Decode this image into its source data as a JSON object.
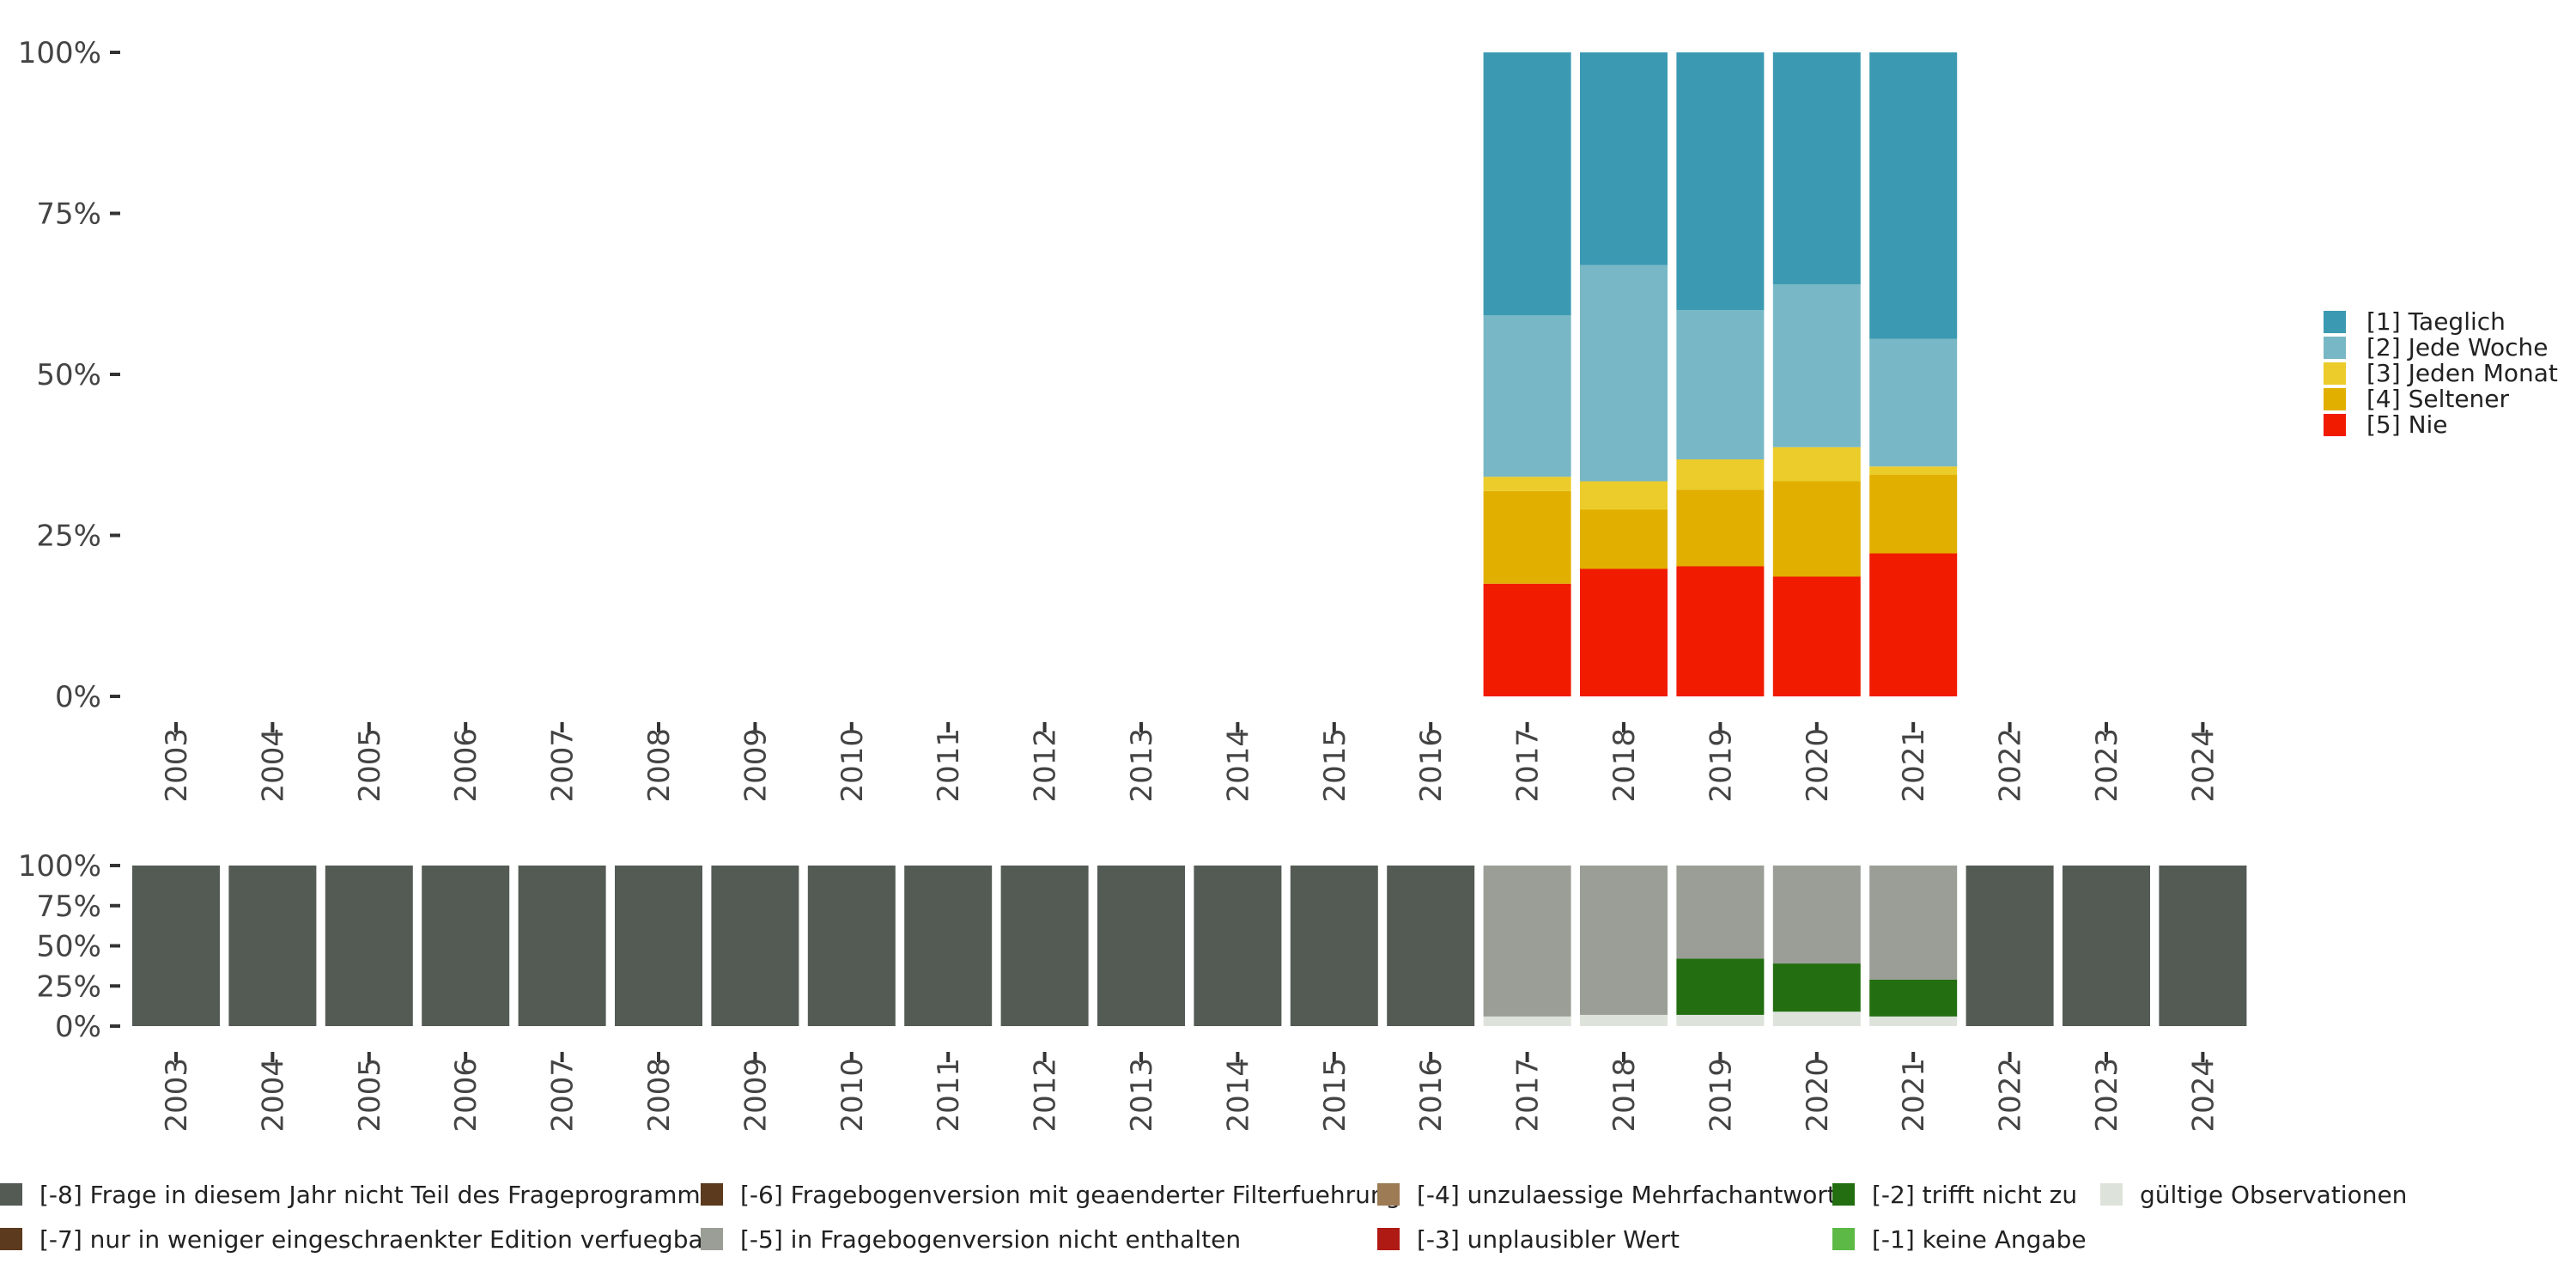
{
  "chart_data": [
    {
      "type": "bar",
      "stacked": true,
      "normalized": true,
      "title": "",
      "xlabel": "",
      "ylabel": "",
      "ylim": [
        0,
        100
      ],
      "y_tick_labels": [
        "0%",
        "25%",
        "50%",
        "75%",
        "100%"
      ],
      "categories": [
        "2003",
        "2004",
        "2005",
        "2006",
        "2007",
        "2008",
        "2009",
        "2010",
        "2011",
        "2012",
        "2013",
        "2014",
        "2015",
        "2016",
        "2017",
        "2018",
        "2019",
        "2020",
        "2021",
        "2022",
        "2023",
        "2024"
      ],
      "series": [
        {
          "name": "[5] Nie",
          "color": "#F11B00",
          "values": [
            0,
            0,
            0,
            0,
            0,
            0,
            0,
            0,
            0,
            0,
            0,
            0,
            0,
            0,
            17.5,
            19.8,
            20.2,
            18.6,
            22.2,
            0,
            0,
            0
          ]
        },
        {
          "name": "[4] Seltener",
          "color": "#E1AF00",
          "values": [
            0,
            0,
            0,
            0,
            0,
            0,
            0,
            0,
            0,
            0,
            0,
            0,
            0,
            0,
            14.4,
            9.2,
            11.9,
            14.8,
            12.2,
            0,
            0,
            0
          ]
        },
        {
          "name": "[3] Jeden Monat",
          "color": "#EBCC2A",
          "values": [
            0,
            0,
            0,
            0,
            0,
            0,
            0,
            0,
            0,
            0,
            0,
            0,
            0,
            0,
            2.2,
            4.4,
            4.7,
            5.3,
            1.3,
            0,
            0,
            0
          ]
        },
        {
          "name": "[2] Jede Woche",
          "color": "#78B7C5",
          "values": [
            0,
            0,
            0,
            0,
            0,
            0,
            0,
            0,
            0,
            0,
            0,
            0,
            0,
            0,
            25.1,
            33.6,
            23.2,
            25.3,
            19.8,
            0,
            0,
            0
          ]
        },
        {
          "name": "[1] Taeglich",
          "color": "#3B9AB2",
          "values": [
            0,
            0,
            0,
            0,
            0,
            0,
            0,
            0,
            0,
            0,
            0,
            0,
            0,
            0,
            40.8,
            33.0,
            40.0,
            36.0,
            44.5,
            0,
            0,
            0
          ]
        }
      ],
      "legend": [
        {
          "label": "[1] Taeglich",
          "color": "#3B9AB2"
        },
        {
          "label": "[2] Jede Woche",
          "color": "#78B7C5"
        },
        {
          "label": "[3] Jeden Monat",
          "color": "#EBCC2A"
        },
        {
          "label": "[4] Seltener",
          "color": "#E1AF00"
        },
        {
          "label": "[5] Nie",
          "color": "#F11B00"
        }
      ],
      "legend_position": "right"
    },
    {
      "type": "bar",
      "stacked": true,
      "normalized": true,
      "title": "",
      "xlabel": "",
      "ylabel": "",
      "ylim": [
        0,
        100
      ],
      "y_tick_labels": [
        "0%",
        "25%",
        "50%",
        "75%",
        "100%"
      ],
      "categories": [
        "2003",
        "2004",
        "2005",
        "2006",
        "2007",
        "2008",
        "2009",
        "2010",
        "2011",
        "2012",
        "2013",
        "2014",
        "2015",
        "2016",
        "2017",
        "2018",
        "2019",
        "2020",
        "2021",
        "2022",
        "2023",
        "2024"
      ],
      "series": [
        {
          "name": "gültige Observationen",
          "color": "#DDE3DA",
          "values": [
            0,
            0,
            0,
            0,
            0,
            0,
            0,
            0,
            0,
            0,
            0,
            0,
            0,
            0,
            6,
            7,
            7,
            9,
            6,
            0,
            0,
            0
          ]
        },
        {
          "name": "[-2] trifft nicht zu",
          "color": "#226E10",
          "values": [
            0,
            0,
            0,
            0,
            0,
            0,
            0,
            0,
            0,
            0,
            0,
            0,
            0,
            0,
            0,
            0,
            35,
            30,
            23,
            0,
            0,
            0
          ]
        },
        {
          "name": "[-5] in Fragebogenversion nicht enthalten",
          "color": "#9A9E96",
          "values": [
            0,
            0,
            0,
            0,
            0,
            0,
            0,
            0,
            0,
            0,
            0,
            0,
            0,
            0,
            94,
            93,
            58,
            61,
            71,
            0,
            0,
            0
          ]
        },
        {
          "name": "[-8] Frage in diesem Jahr nicht Teil des Frageprogramms",
          "color": "#535B54",
          "values": [
            100,
            100,
            100,
            100,
            100,
            100,
            100,
            100,
            100,
            100,
            100,
            100,
            100,
            100,
            0,
            0,
            0,
            0,
            0,
            100,
            100,
            100
          ]
        }
      ],
      "legend": [
        {
          "label": "[-8] Frage in diesem Jahr nicht Teil des Frageprogramms",
          "color": "#535B54"
        },
        {
          "label": "[-7] nur in weniger eingeschraenkter Edition verfuegbar",
          "color": "#5C3A1E"
        },
        {
          "label": "[-6] Fragebogenversion mit geaenderter Filterfuehrung",
          "color": "#5C3A1E"
        },
        {
          "label": "[-5] in Fragebogenversion nicht enthalten",
          "color": "#9A9E96"
        },
        {
          "label": "[-4] unzulaessige Mehrfachantwort",
          "color": "#9C7B55"
        },
        {
          "label": "[-3] unplausibler Wert",
          "color": "#B01A14"
        },
        {
          "label": "[-2] trifft nicht zu",
          "color": "#226E10"
        },
        {
          "label": "[-1] keine Angabe",
          "color": "#5CB946"
        },
        {
          "label": "gültige Observationen",
          "color": "#DDE3DA"
        }
      ],
      "legend_position": "bottom"
    }
  ]
}
